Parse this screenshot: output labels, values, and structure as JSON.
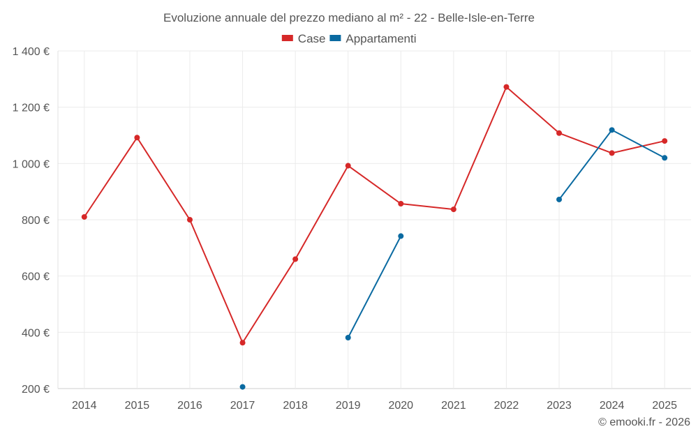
{
  "chart_data": {
    "type": "line",
    "title": "Evoluzione annuale del prezzo mediano al m² - 22 - Belle-Isle-en-Terre",
    "xlabel": "",
    "ylabel": "",
    "categories": [
      "2014",
      "2015",
      "2016",
      "2017",
      "2018",
      "2019",
      "2020",
      "2021",
      "2022",
      "2023",
      "2024",
      "2025"
    ],
    "ylim": [
      200,
      1400
    ],
    "yticks": [
      200,
      400,
      600,
      800,
      1000,
      1200,
      1400
    ],
    "ytick_labels": [
      "200 €",
      "400 €",
      "600 €",
      "800 €",
      "1 000 €",
      "1 200 €",
      "1 400 €"
    ],
    "grid": true,
    "legend_position": "top-center",
    "series": [
      {
        "name": "Case",
        "color": "#d62828",
        "values": [
          810,
          1092,
          800,
          363,
          660,
          992,
          857,
          837,
          1272,
          1108,
          1037,
          1080
        ]
      },
      {
        "name": "Appartamenti",
        "color": "#0a6aa1",
        "values": [
          null,
          null,
          null,
          206,
          null,
          381,
          742,
          null,
          null,
          872,
          1119,
          1020
        ]
      }
    ]
  },
  "credit": "© emooki.fr - 2026"
}
